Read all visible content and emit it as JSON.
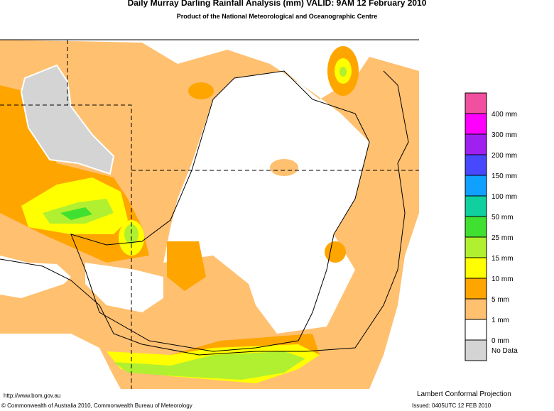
{
  "header": {
    "title": "Daily Murray Darling Rainfall Analysis (mm)  VALID: 9AM 12 February 2010",
    "subtitle": "Product of the National Meteorological and Oceanographic Centre"
  },
  "legend": {
    "top_color": "#f0509f",
    "items": [
      {
        "label": "400 mm",
        "color": "#ff00ff"
      },
      {
        "label": "300 mm",
        "color": "#a020f0"
      },
      {
        "label": "200 mm",
        "color": "#4848ff"
      },
      {
        "label": "150 mm",
        "color": "#10a0ff"
      },
      {
        "label": "100 mm",
        "color": "#10d0a0"
      },
      {
        "label": "50 mm",
        "color": "#40e030"
      },
      {
        "label": "25 mm",
        "color": "#b0f030"
      },
      {
        "label": "15 mm",
        "color": "#ffff00"
      },
      {
        "label": "10 mm",
        "color": "#ffa500"
      },
      {
        "label": "5 mm",
        "color": "#ffc070"
      },
      {
        "label": "1 mm",
        "color": "#ffffff"
      },
      {
        "label": "0 mm",
        "color": "#d4d4d4"
      }
    ],
    "no_data": "No Data"
  },
  "footer": {
    "url": "http://www.bom.gov.au",
    "projection": "Lambert Conformal Projection",
    "copyright": "© Commonwealth of Australia 2010, Commonwealth Bureau of Meteorology",
    "issued": "Issued: 0405UTC 12 FEB 2010"
  }
}
